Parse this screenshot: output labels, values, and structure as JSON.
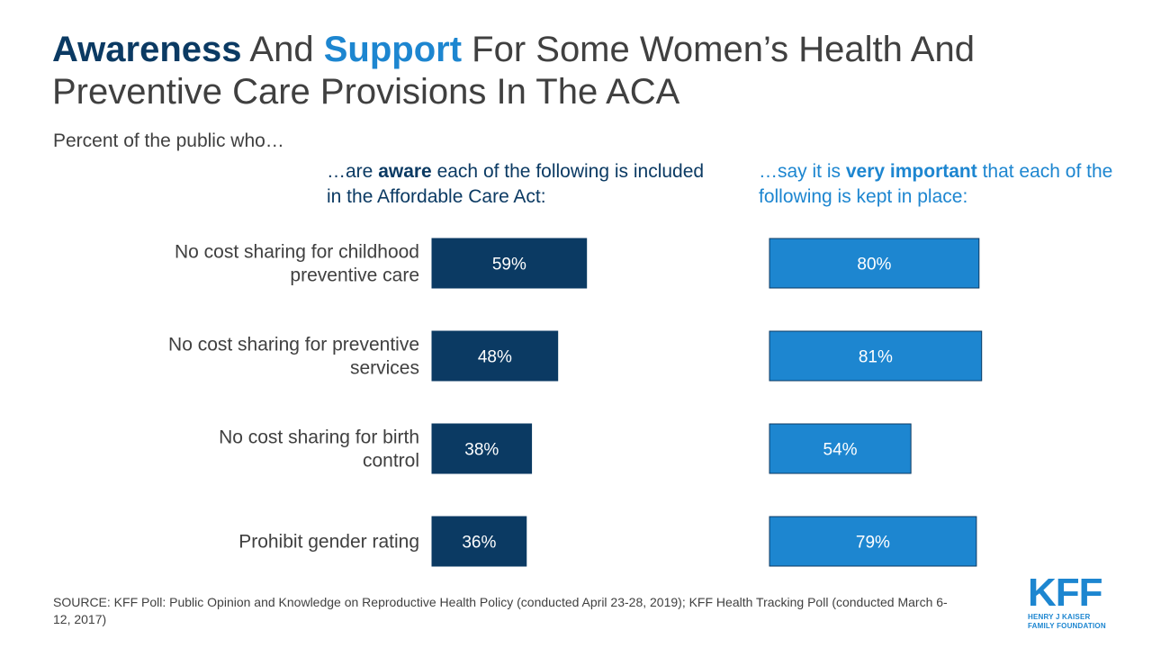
{
  "title": {
    "word1": "Awareness",
    "word2": " And ",
    "word3": "Support",
    "rest": " For Some Women’s Health And Preventive Care Provisions In The ACA"
  },
  "subtitle": "Percent of the public who…",
  "columns": {
    "aware": {
      "prefix": "…are ",
      "strong": "aware",
      "suffix": " each of the following is included in the Affordable Care Act:"
    },
    "important": {
      "prefix": "…say it is ",
      "strong": "very important",
      "suffix": " that each of the following is kept in place:"
    }
  },
  "chart_data": {
    "type": "bar",
    "orientation": "horizontal",
    "categories": [
      "No cost sharing for childhood preventive care",
      "No cost sharing for preventive services",
      "No cost sharing for birth control",
      "Prohibit gender rating"
    ],
    "series": [
      {
        "values": [
          59,
          48,
          38,
          36
        ],
        "labels": [
          "59%",
          "48%",
          "38%",
          "36%"
        ],
        "color": "#0b3a63"
      },
      {
        "values": [
          80,
          81,
          54,
          79
        ],
        "labels": [
          "80%",
          "81%",
          "54%",
          "79%"
        ],
        "color": "#1d86d0"
      }
    ],
    "xlim": [
      0,
      100
    ]
  },
  "source": "SOURCE: KFF Poll: Public Opinion and Knowledge on Reproductive Health Policy (conducted April 23-28, 2019); KFF Health Tracking Poll (conducted March 6-12, 2017)",
  "logo": {
    "letters": "KFF",
    "line1": "HENRY J KAISER",
    "line2": "FAMILY FOUNDATION"
  },
  "colors": {
    "navy": "#0b3a63",
    "blue": "#1d86d0",
    "bar_border": "#0b3a63",
    "text": "#404040"
  }
}
